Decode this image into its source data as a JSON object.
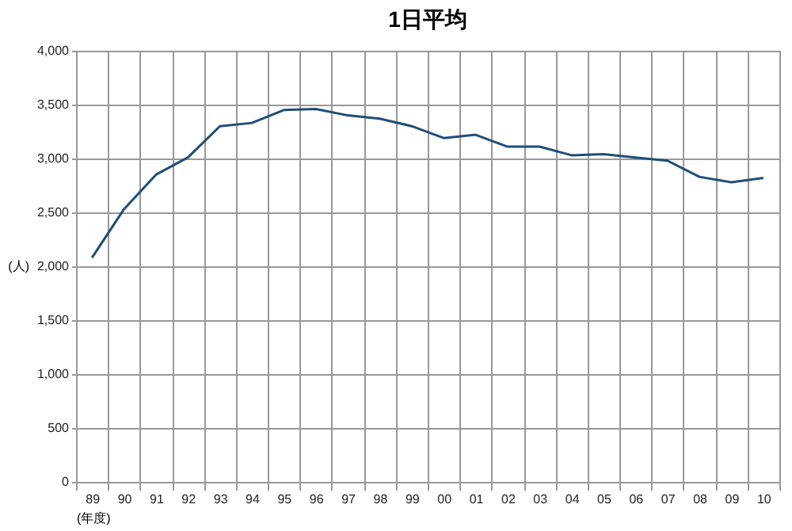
{
  "chart_data": {
    "type": "line",
    "title": "1日平均",
    "xlabel": "(年度)",
    "ylabel": "(人)",
    "categories": [
      "89",
      "90",
      "91",
      "92",
      "93",
      "94",
      "95",
      "96",
      "97",
      "98",
      "99",
      "00",
      "01",
      "02",
      "03",
      "04",
      "05",
      "06",
      "07",
      "08",
      "09",
      "10"
    ],
    "series": [
      {
        "color": "#1f4e79",
        "values": [
          2080,
          2530,
          2850,
          3010,
          3300,
          3330,
          3450,
          3460,
          3400,
          3370,
          3300,
          3190,
          3220,
          3110,
          3110,
          3030,
          3040,
          3010,
          2980,
          2830,
          2780,
          2820
        ]
      }
    ],
    "ylim": [
      0,
      4000
    ],
    "yticks": [
      {
        "value": 0,
        "label": "0"
      },
      {
        "value": 500,
        "label": "500"
      },
      {
        "value": 1000,
        "label": "1,000"
      },
      {
        "value": 1500,
        "label": "1,500"
      },
      {
        "value": 2000,
        "label": "2,000"
      },
      {
        "value": 2500,
        "label": "2,500"
      },
      {
        "value": 3000,
        "label": "3,000"
      },
      {
        "value": 3500,
        "label": "3,500"
      },
      {
        "value": 4000,
        "label": "4,000"
      }
    ],
    "grid": true,
    "marker": "none",
    "line_style": "solid"
  }
}
